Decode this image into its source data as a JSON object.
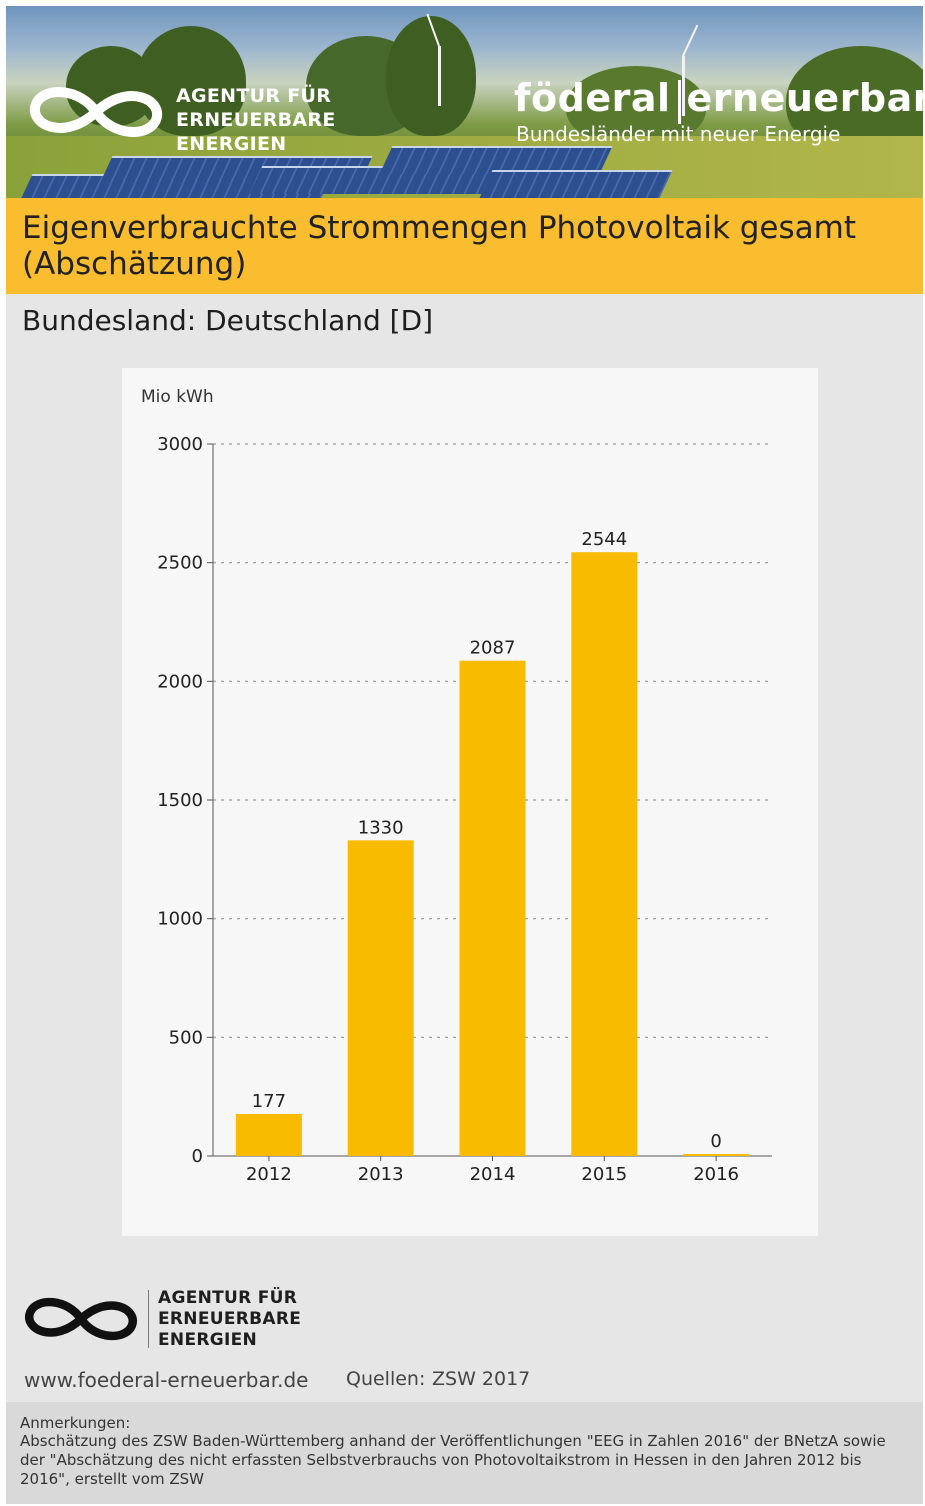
{
  "banner": {
    "agency_lines": [
      "AGENTUR FÜR",
      "ERNEUERBARE",
      "ENERGIEN"
    ],
    "brand_left": "föderal",
    "brand_right": "erneuerbar",
    "brand_subtitle": "Bundesländer mit neuer Energie"
  },
  "title": "Eigenverbrauchte Strommengen Photovoltaik gesamt (Abschätzung)",
  "state_label": "Bundesland: Deutschland [D]",
  "colors": {
    "bar": "#f9bb00",
    "title_bar": "#f9bd2f",
    "grid": "#9a9a9a"
  },
  "chart_data": {
    "type": "bar",
    "ylabel": "Mio kWh",
    "categories": [
      "2012",
      "2013",
      "2014",
      "2015",
      "2016"
    ],
    "values": [
      177,
      1330,
      2087,
      2544,
      0
    ],
    "data_labels": [
      "177",
      "1330",
      "2087",
      "2544",
      "0"
    ],
    "ylim": [
      0,
      3000
    ],
    "yticks": [
      0,
      500,
      1000,
      1500,
      2000,
      2500,
      3000
    ],
    "grid": true,
    "grid_style": "dotted horizontal"
  },
  "footer": {
    "agency_lines": [
      "AGENTUR FÜR",
      "ERNEUERBARE",
      "ENERGIEN"
    ],
    "website": "www.foederal-erneuerbar.de",
    "sources_label": "Quellen:",
    "sources_value": "ZSW 2017",
    "notes_label": "Anmerkungen:",
    "notes_text": "Abschätzung des ZSW Baden-Württemberg anhand der Veröffentlichungen \"EEG in Zahlen 2016\" der BNetzA sowie der \"Abschätzung des nicht erfassten Selbstverbrauchs von Photovoltaikstrom in Hessen in den Jahren 2012 bis 2016\", erstellt vom ZSW"
  }
}
